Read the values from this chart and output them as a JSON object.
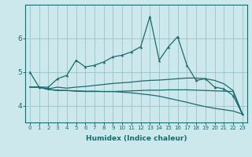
{
  "xlabel": "Humidex (Indice chaleur)",
  "bg_color": "#cce8ec",
  "grid_color": "#a0c8cc",
  "line_color": "#1a6b6b",
  "x_values": [
    0,
    1,
    2,
    3,
    4,
    5,
    6,
    7,
    8,
    9,
    10,
    11,
    12,
    13,
    14,
    15,
    16,
    17,
    18,
    19,
    20,
    21,
    22,
    23
  ],
  "line1": [
    5.0,
    4.55,
    4.55,
    4.8,
    4.9,
    5.35,
    5.15,
    5.2,
    5.3,
    5.45,
    5.5,
    5.6,
    5.75,
    6.65,
    5.35,
    5.75,
    6.05,
    5.2,
    4.75,
    4.8,
    4.55,
    4.5,
    4.3,
    3.75
  ],
  "line2": [
    4.55,
    4.55,
    4.5,
    4.55,
    4.52,
    4.55,
    4.57,
    4.6,
    4.63,
    4.66,
    4.68,
    4.7,
    4.73,
    4.75,
    4.76,
    4.78,
    4.8,
    4.82,
    4.82,
    4.8,
    4.75,
    4.65,
    4.45,
    3.75
  ],
  "line3": [
    4.55,
    4.55,
    4.48,
    4.45,
    4.45,
    4.44,
    4.43,
    4.43,
    4.42,
    4.42,
    4.4,
    4.38,
    4.35,
    4.32,
    4.28,
    4.22,
    4.16,
    4.1,
    4.03,
    3.97,
    3.92,
    3.88,
    3.84,
    3.75
  ],
  "line4": [
    4.55,
    4.55,
    4.48,
    4.46,
    4.45,
    4.43,
    4.42,
    4.42,
    4.42,
    4.42,
    4.43,
    4.44,
    4.45,
    4.46,
    4.46,
    4.47,
    4.47,
    4.47,
    4.46,
    4.45,
    4.44,
    4.43,
    4.42,
    3.75
  ],
  "ylim": [
    3.5,
    7.0
  ],
  "yticks": [
    4,
    5,
    6
  ],
  "xlim": [
    -0.5,
    23.5
  ]
}
